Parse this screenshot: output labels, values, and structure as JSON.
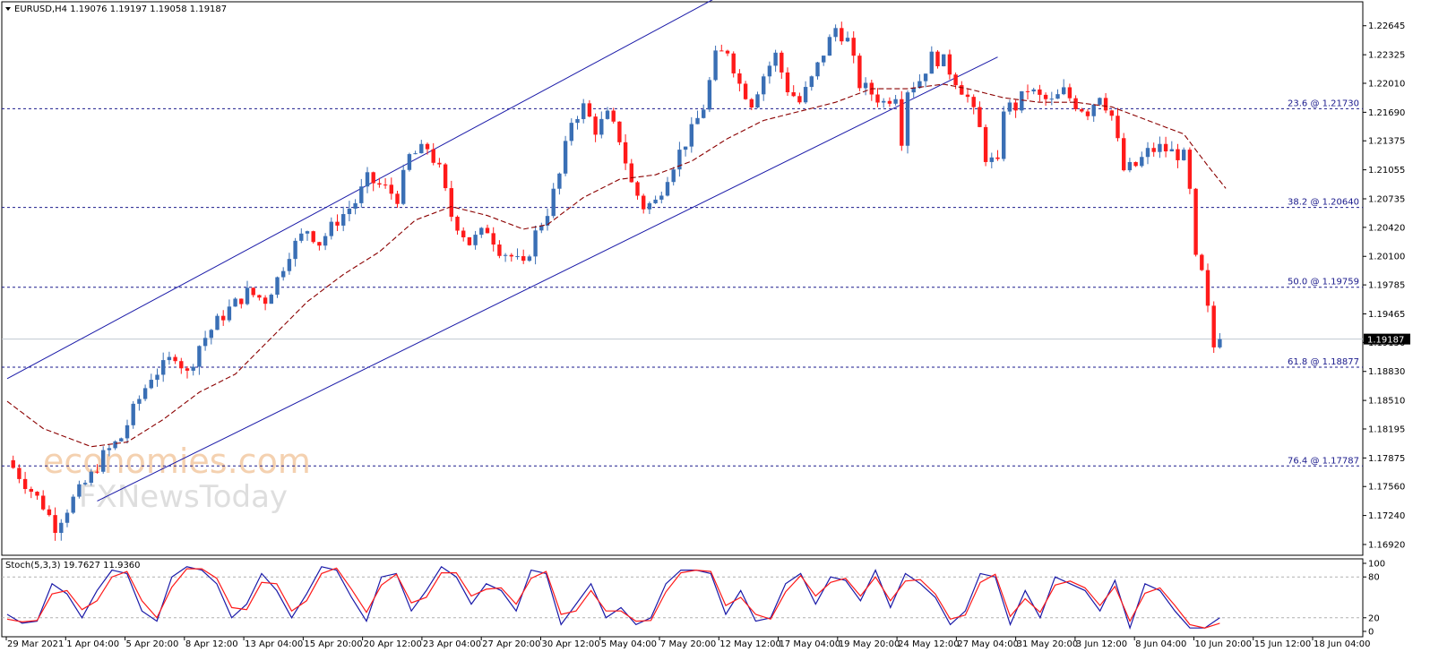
{
  "header": {
    "title_text": "EURUSD,H4  1.19076 1.19197 1.19058 1.19187"
  },
  "colors": {
    "bull": "#3a6fb5",
    "bear": "#ff1a1a",
    "ma": "#8b0000",
    "channel": "#1a1aa8",
    "fib": "#1a1a8c",
    "stoch_main": "#1a1aa8",
    "stoch_signal": "#ff1a1a",
    "grid_level": "#b0b0b0",
    "watermark": "#f3c9a3"
  },
  "watermark": {
    "line1": "economies.com",
    "line2": "FXNewsToday"
  },
  "chart_data": [
    {
      "type": "candlestick",
      "symbol": "EURUSD",
      "timeframe": "H4",
      "ohlc_header": {
        "open": 1.19076,
        "high": 1.19197,
        "low": 1.19058,
        "close": 1.19187
      },
      "current_price": 1.19187,
      "current_price_label": "1.19187",
      "ylim": [
        1.169,
        1.2285
      ],
      "y_ticks": [
        "1.22645",
        "1.22325",
        "1.22010",
        "1.21690",
        "1.21375",
        "1.21055",
        "1.20735",
        "1.20420",
        "1.20100",
        "1.19785",
        "1.19465",
        "1.19150",
        "1.18830",
        "1.18510",
        "1.18195",
        "1.17875",
        "1.17560",
        "1.17240",
        "1.16920"
      ],
      "x_ticks": [
        "29 Mar 2021",
        "1 Apr 04:00",
        "5 Apr 20:00",
        "8 Apr 12:00",
        "13 Apr 04:00",
        "15 Apr 20:00",
        "20 Apr 12:00",
        "23 Apr 04:00",
        "27 Apr 20:00",
        "30 Apr 12:00",
        "5 May 04:00",
        "7 May 20:00",
        "12 May 12:00",
        "17 May 04:00",
        "19 May 20:00",
        "24 May 12:00",
        "27 May 04:00",
        "31 May 20:00",
        "3 Jun 12:00",
        "8 Jun 04:00",
        "10 Jun 20:00",
        "15 Jun 12:00",
        "18 Jun 04:00"
      ],
      "fib_levels": [
        {
          "label": "23.6 @ 1.21730",
          "value": 1.2173
        },
        {
          "label": "38.2 @ 1.20640",
          "value": 1.2064
        },
        {
          "label": "50.0 @ 1.19759",
          "value": 1.19759
        },
        {
          "label": "61.8 @ 1.18877",
          "value": 1.18877
        },
        {
          "label": "76.4 @ 1.17787",
          "value": 1.17787
        }
      ],
      "price_path": [
        [
          0,
          1.1785
        ],
        [
          3,
          1.176
        ],
        [
          6,
          1.1735
        ],
        [
          8,
          1.1712
        ],
        [
          11,
          1.1742
        ],
        [
          14,
          1.1768
        ],
        [
          16,
          1.179
        ],
        [
          19,
          1.181
        ],
        [
          21,
          1.184
        ],
        [
          24,
          1.1878
        ],
        [
          26,
          1.1888
        ],
        [
          28,
          1.1902
        ],
        [
          30,
          1.188
        ],
        [
          32,
          1.1912
        ],
        [
          35,
          1.1938
        ],
        [
          37,
          1.1952
        ],
        [
          40,
          1.197
        ],
        [
          43,
          1.1962
        ],
        [
          45,
          1.1985
        ],
        [
          47,
          1.2015
        ],
        [
          50,
          1.204
        ],
        [
          52,
          1.2025
        ],
        [
          55,
          1.205
        ],
        [
          58,
          1.207
        ],
        [
          60,
          1.2095
        ],
        [
          63,
          1.2085
        ],
        [
          65,
          1.2075
        ],
        [
          67,
          1.212
        ],
        [
          70,
          1.213
        ],
        [
          72,
          1.2105
        ],
        [
          74,
          1.2055
        ],
        [
          77,
          1.2025
        ],
        [
          80,
          1.204
        ],
        [
          82,
          1.2018
        ],
        [
          84,
          1.201
        ],
        [
          86,
          1.1998
        ],
        [
          88,
          1.2035
        ],
        [
          90,
          1.206
        ],
        [
          92,
          1.21
        ],
        [
          94,
          1.216
        ],
        [
          96,
          1.2175
        ],
        [
          98,
          1.215
        ],
        [
          100,
          1.2165
        ],
        [
          102,
          1.214
        ],
        [
          104,
          1.209
        ],
        [
          106,
          1.2065
        ],
        [
          108,
          1.207
        ],
        [
          110,
          1.21
        ],
        [
          112,
          1.2125
        ],
        [
          114,
          1.2148
        ],
        [
          116,
          1.2175
        ],
        [
          118,
          1.223
        ],
        [
          120,
          1.2238
        ],
        [
          122,
          1.22
        ],
        [
          124,
          1.218
        ],
        [
          126,
          1.221
        ],
        [
          128,
          1.2232
        ],
        [
          130,
          1.2195
        ],
        [
          132,
          1.218
        ],
        [
          134,
          1.2205
        ],
        [
          136,
          1.2235
        ],
        [
          138,
          1.2262
        ],
        [
          140,
          1.2248
        ],
        [
          142,
          1.22
        ],
        [
          144,
          1.219
        ],
        [
          146,
          1.218
        ],
        [
          148,
          1.219
        ],
        [
          149,
          1.214
        ],
        [
          150,
          1.2195
        ],
        [
          152,
          1.2205
        ],
        [
          154,
          1.223
        ],
        [
          156,
          1.2225
        ],
        [
          158,
          1.2205
        ],
        [
          160,
          1.2185
        ],
        [
          162,
          1.215
        ],
        [
          163,
          1.212
        ],
        [
          165,
          1.211
        ],
        [
          166,
          1.2175
        ],
        [
          168,
          1.2175
        ],
        [
          170,
          1.2195
        ],
        [
          172,
          1.2185
        ],
        [
          174,
          1.218
        ],
        [
          176,
          1.2192
        ],
        [
          178,
          1.2178
        ],
        [
          180,
          1.217
        ],
        [
          182,
          1.219
        ],
        [
          184,
          1.2165
        ],
        [
          186,
          1.2105
        ],
        [
          188,
          1.211
        ],
        [
          190,
          1.2125
        ],
        [
          192,
          1.213
        ],
        [
          194,
          1.2125
        ],
        [
          196,
          1.212
        ],
        [
          197,
          1.208
        ],
        [
          198,
          1.2005
        ],
        [
          199,
          1.199
        ],
        [
          200,
          1.195
        ],
        [
          201,
          1.191
        ],
        [
          202,
          1.1919
        ]
      ],
      "ma_path": [
        [
          0,
          1.185
        ],
        [
          6,
          1.182
        ],
        [
          14,
          1.18
        ],
        [
          20,
          1.1805
        ],
        [
          26,
          1.183
        ],
        [
          32,
          1.186
        ],
        [
          38,
          1.188
        ],
        [
          44,
          1.192
        ],
        [
          50,
          1.196
        ],
        [
          56,
          1.199
        ],
        [
          62,
          1.2015
        ],
        [
          68,
          1.205
        ],
        [
          74,
          1.2065
        ],
        [
          80,
          1.2055
        ],
        [
          86,
          1.204
        ],
        [
          90,
          1.2045
        ],
        [
          96,
          1.2075
        ],
        [
          102,
          1.2095
        ],
        [
          108,
          1.21
        ],
        [
          114,
          1.2115
        ],
        [
          120,
          1.214
        ],
        [
          126,
          1.216
        ],
        [
          132,
          1.217
        ],
        [
          138,
          1.218
        ],
        [
          144,
          1.2195
        ],
        [
          150,
          1.2195
        ],
        [
          156,
          1.22
        ],
        [
          160,
          1.2195
        ],
        [
          166,
          1.2185
        ],
        [
          172,
          1.218
        ],
        [
          178,
          1.218
        ],
        [
          184,
          1.2175
        ],
        [
          190,
          1.216
        ],
        [
          196,
          1.2145
        ],
        [
          200,
          1.211
        ],
        [
          203,
          1.2085
        ]
      ],
      "channel": {
        "upper": [
          [
            0,
            1.1875
          ],
          [
            118,
            1.2295
          ]
        ],
        "lower": [
          [
            15,
            1.174
          ],
          [
            165,
            1.223
          ]
        ]
      }
    },
    {
      "type": "line",
      "title": "Stoch(5,3,3) 19.7627 11.9360",
      "ylim": [
        0,
        100
      ],
      "y_ticks": [
        "100",
        "80",
        "20",
        "0"
      ],
      "levels": [
        80,
        20
      ],
      "series": [
        {
          "name": "main",
          "values": [
            25,
            12,
            15,
            70,
            55,
            20,
            60,
            90,
            85,
            30,
            15,
            80,
            95,
            90,
            70,
            20,
            40,
            85,
            60,
            20,
            55,
            95,
            90,
            50,
            15,
            80,
            85,
            30,
            60,
            95,
            80,
            40,
            70,
            60,
            30,
            90,
            85,
            10,
            40,
            70,
            20,
            35,
            10,
            20,
            70,
            90,
            90,
            85,
            25,
            60,
            15,
            20,
            70,
            85,
            40,
            80,
            75,
            45,
            90,
            35,
            85,
            70,
            50,
            10,
            30,
            85,
            80,
            10,
            60,
            20,
            80,
            70,
            60,
            30,
            75,
            5,
            70,
            60,
            30,
            5,
            5,
            20
          ]
        },
        {
          "name": "signal",
          "values": [
            18,
            14,
            16,
            55,
            60,
            32,
            45,
            80,
            88,
            45,
            20,
            65,
            92,
            92,
            78,
            35,
            32,
            72,
            70,
            30,
            45,
            85,
            93,
            62,
            28,
            68,
            84,
            42,
            50,
            86,
            86,
            52,
            62,
            64,
            40,
            78,
            88,
            25,
            30,
            60,
            30,
            30,
            15,
            16,
            58,
            86,
            90,
            88,
            38,
            50,
            25,
            18,
            58,
            82,
            52,
            72,
            78,
            52,
            80,
            45,
            74,
            76,
            55,
            18,
            24,
            72,
            84,
            22,
            48,
            28,
            68,
            74,
            64,
            38,
            66,
            15,
            56,
            64,
            38,
            10,
            5,
            12
          ]
        }
      ]
    }
  ]
}
